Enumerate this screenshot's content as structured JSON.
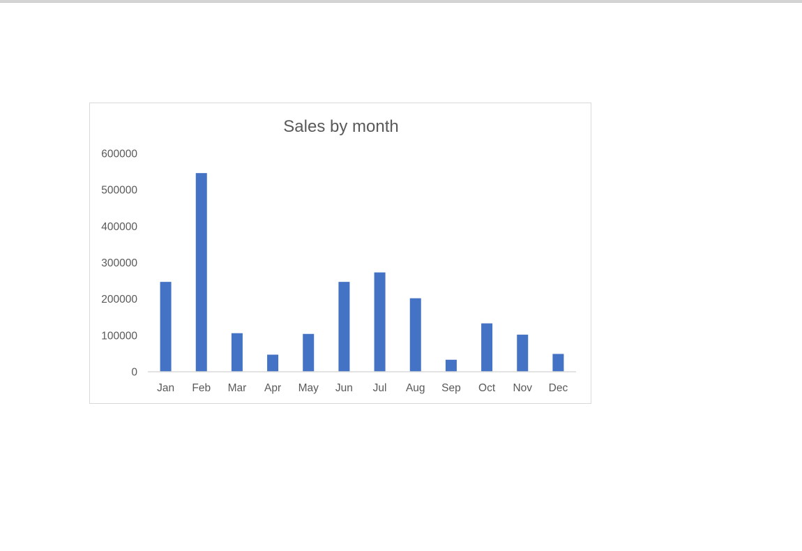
{
  "chart_data": {
    "type": "bar",
    "title": "Sales by month",
    "categories": [
      "Jan",
      "Feb",
      "Mar",
      "Apr",
      "May",
      "Jun",
      "Jul",
      "Aug",
      "Sep",
      "Oct",
      "Nov",
      "Dec"
    ],
    "values": [
      247000,
      546000,
      106000,
      47000,
      104000,
      247000,
      273000,
      202000,
      33000,
      133000,
      102000,
      49000
    ],
    "ylim": [
      0,
      600000
    ],
    "yticks": [
      "0",
      "100000",
      "200000",
      "300000",
      "400000",
      "500000",
      "600000"
    ],
    "xlabel": "",
    "ylabel": "",
    "grid": false,
    "legend": "none",
    "colors": {
      "bar": "#4472c4",
      "axis": "#d9d9d9",
      "text": "#595959"
    }
  }
}
